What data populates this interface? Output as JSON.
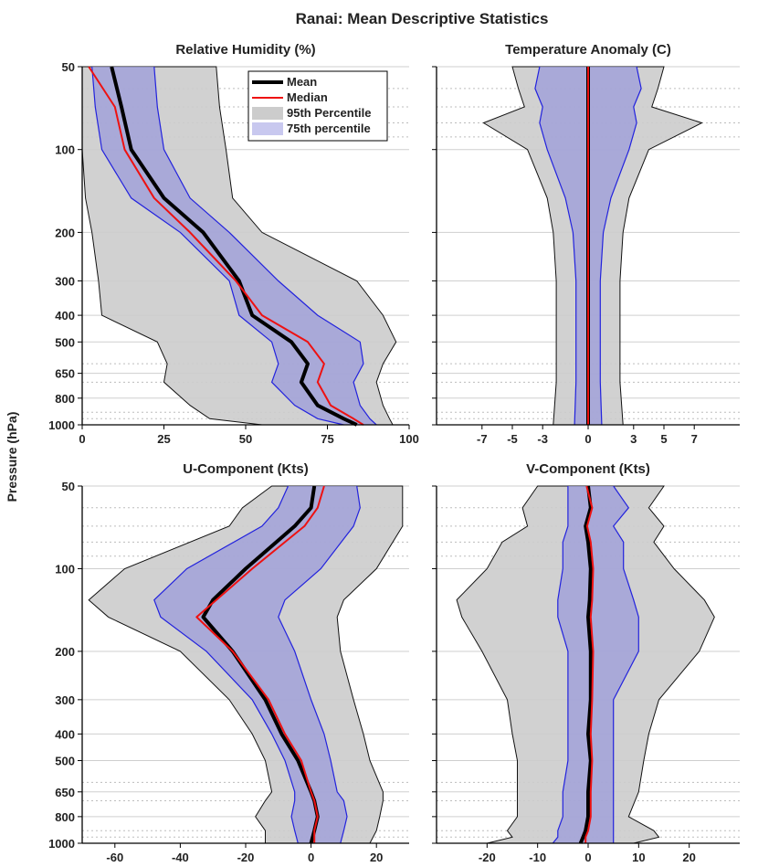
{
  "title": "Ranai: Mean Descriptive Statistics",
  "ylabel": "Pressure (hPa)",
  "legend": {
    "mean": "Mean",
    "median": "Median",
    "p95": "95th Percentile",
    "p75": "75th percentile"
  },
  "colors": {
    "p95_fill": "#cccccc",
    "p75_fill": "#9b9bd9",
    "p75_edge": "#2222dd",
    "mean": "#000000",
    "median": "#ee1111",
    "grid_major": "#cfcfcf",
    "grid_minor": "#bdbdbd"
  },
  "chart_data": [
    {
      "type": "area",
      "title": "Relative Humidity (%)",
      "xlim": [
        0,
        100
      ],
      "xticks": [
        0,
        25,
        50,
        75,
        100
      ],
      "ytick_labels": [
        "50",
        "100",
        "200",
        "300",
        "400",
        "500",
        "650",
        "800",
        "1000"
      ],
      "y_scale": "log",
      "levels": [
        50,
        70,
        100,
        150,
        200,
        300,
        400,
        500,
        600,
        700,
        850,
        950,
        1000
      ],
      "p95_lo": [
        0,
        0,
        0,
        1,
        3,
        5,
        6,
        23,
        26,
        25,
        33,
        39,
        55
      ],
      "p95_hi": [
        41,
        42,
        44,
        46,
        55,
        84,
        92,
        96,
        92,
        90,
        92,
        94,
        95
      ],
      "p75_lo": [
        3,
        4,
        6,
        15,
        30,
        45,
        48,
        58,
        60,
        58,
        65,
        72,
        80
      ],
      "p75_hi": [
        22,
        23,
        25,
        33,
        45,
        60,
        72,
        85,
        86,
        83,
        85,
        88,
        90
      ],
      "mean": [
        9,
        12,
        15,
        25,
        37,
        48,
        52,
        64,
        69,
        67,
        72,
        80,
        84
      ],
      "median": [
        2,
        10,
        13,
        22,
        33,
        47,
        55,
        69,
        74,
        72,
        76,
        83,
        86
      ]
    },
    {
      "type": "area",
      "title": "Temperature Anomaly (C)",
      "xlim": [
        -10,
        10
      ],
      "xticks": [
        -7,
        -5,
        -3,
        0,
        3,
        5,
        7
      ],
      "ytick_labels": [
        "",
        "",
        "",
        "",
        "",
        "",
        "",
        "",
        ""
      ],
      "y_scale": "log",
      "levels": [
        50,
        60,
        70,
        80,
        100,
        150,
        200,
        300,
        500,
        700,
        1000
      ],
      "p95_lo": [
        -5.0,
        -4.6,
        -4.2,
        -6.9,
        -4.0,
        -2.7,
        -2.3,
        -2.1,
        -2.1,
        -2.1,
        -2.3
      ],
      "p95_hi": [
        5.0,
        4.6,
        4.2,
        7.5,
        4.0,
        2.7,
        2.3,
        2.1,
        2.1,
        2.1,
        2.3
      ],
      "p75_lo": [
        -3.2,
        -3.5,
        -3.0,
        -3.2,
        -2.7,
        -1.5,
        -1.0,
        -0.8,
        -0.8,
        -0.8,
        -0.9
      ],
      "p75_hi": [
        3.2,
        3.5,
        3.0,
        3.2,
        2.7,
        1.5,
        1.0,
        0.8,
        0.8,
        0.8,
        0.9
      ],
      "mean": [
        0,
        0,
        0,
        0,
        0,
        0,
        0,
        0,
        0,
        0,
        0
      ],
      "median": [
        0,
        0,
        0,
        0,
        0,
        0,
        0,
        0,
        0,
        0,
        0
      ]
    },
    {
      "type": "area",
      "title": "U-Component (Kts)",
      "xlim": [
        -70,
        30
      ],
      "xticks": [
        -60,
        -40,
        -20,
        0,
        20
      ],
      "ytick_labels": [
        "50",
        "100",
        "200",
        "300",
        "400",
        "500",
        "650",
        "800",
        "1000"
      ],
      "y_scale": "log",
      "levels": [
        50,
        60,
        70,
        100,
        130,
        150,
        200,
        300,
        400,
        500,
        650,
        700,
        800,
        900,
        1000
      ],
      "p95_lo": [
        -12,
        -21,
        -25,
        -57,
        -68,
        -62,
        -40,
        -25,
        -18,
        -14,
        -12,
        -14,
        -17,
        -14,
        -14
      ],
      "p95_hi": [
        28,
        28,
        28,
        20,
        10,
        8,
        9,
        13,
        16,
        18,
        22,
        22,
        21,
        20,
        18
      ],
      "p75_lo": [
        -7,
        -10,
        -15,
        -38,
        -48,
        -46,
        -32,
        -18,
        -12,
        -8,
        -5,
        -5,
        -6,
        -5,
        -4
      ],
      "p75_hi": [
        14,
        15,
        13,
        3,
        -8,
        -10,
        -5,
        0,
        4,
        6,
        8,
        10,
        11,
        10,
        9
      ],
      "mean": [
        1,
        0,
        -5,
        -20,
        -30,
        -33,
        -24,
        -14,
        -9,
        -4,
        0,
        1,
        2,
        1,
        0
      ],
      "median": [
        4,
        2,
        -2,
        -18,
        -29,
        -35,
        -24,
        -13,
        -8,
        -3,
        0,
        1,
        2,
        1,
        1
      ]
    },
    {
      "type": "area",
      "title": "V-Component (Kts)",
      "xlim": [
        -30,
        30
      ],
      "xticks": [
        -20,
        -10,
        0,
        10,
        20
      ],
      "ytick_labels": [
        "",
        "",
        "",
        "",
        "",
        "",
        "",
        "",
        ""
      ],
      "y_scale": "log",
      "levels": [
        50,
        60,
        70,
        80,
        100,
        130,
        150,
        200,
        300,
        400,
        500,
        650,
        800,
        900,
        950,
        1000
      ],
      "p95_lo": [
        -10,
        -13,
        -12,
        -17,
        -20,
        -26,
        -25,
        -21,
        -16,
        -15,
        -14,
        -14,
        -14,
        -16,
        -15,
        -20
      ],
      "p95_hi": [
        15,
        12,
        15,
        13,
        17,
        23,
        25,
        22,
        14,
        12,
        11,
        10,
        8,
        13,
        14,
        9
      ],
      "p75_lo": [
        -4,
        -4,
        -4,
        -5,
        -5,
        -6,
        -6,
        -4,
        -4,
        -4,
        -4,
        -5,
        -5,
        -6,
        -6,
        -7
      ],
      "p75_hi": [
        5,
        8,
        5,
        7,
        7,
        9,
        10,
        10,
        5,
        5,
        5,
        5,
        5,
        5,
        5,
        5
      ],
      "mean": [
        0,
        0.5,
        -0.5,
        0,
        0.5,
        0.3,
        0,
        0.5,
        0.5,
        0,
        0.5,
        0,
        0,
        -0.5,
        -1,
        -1.5
      ],
      "median": [
        -0.3,
        0.8,
        -0.2,
        0.5,
        1,
        0.8,
        0.5,
        1,
        0.8,
        0.5,
        0.8,
        0.5,
        0.5,
        0,
        -0.5,
        -0.5
      ]
    }
  ]
}
